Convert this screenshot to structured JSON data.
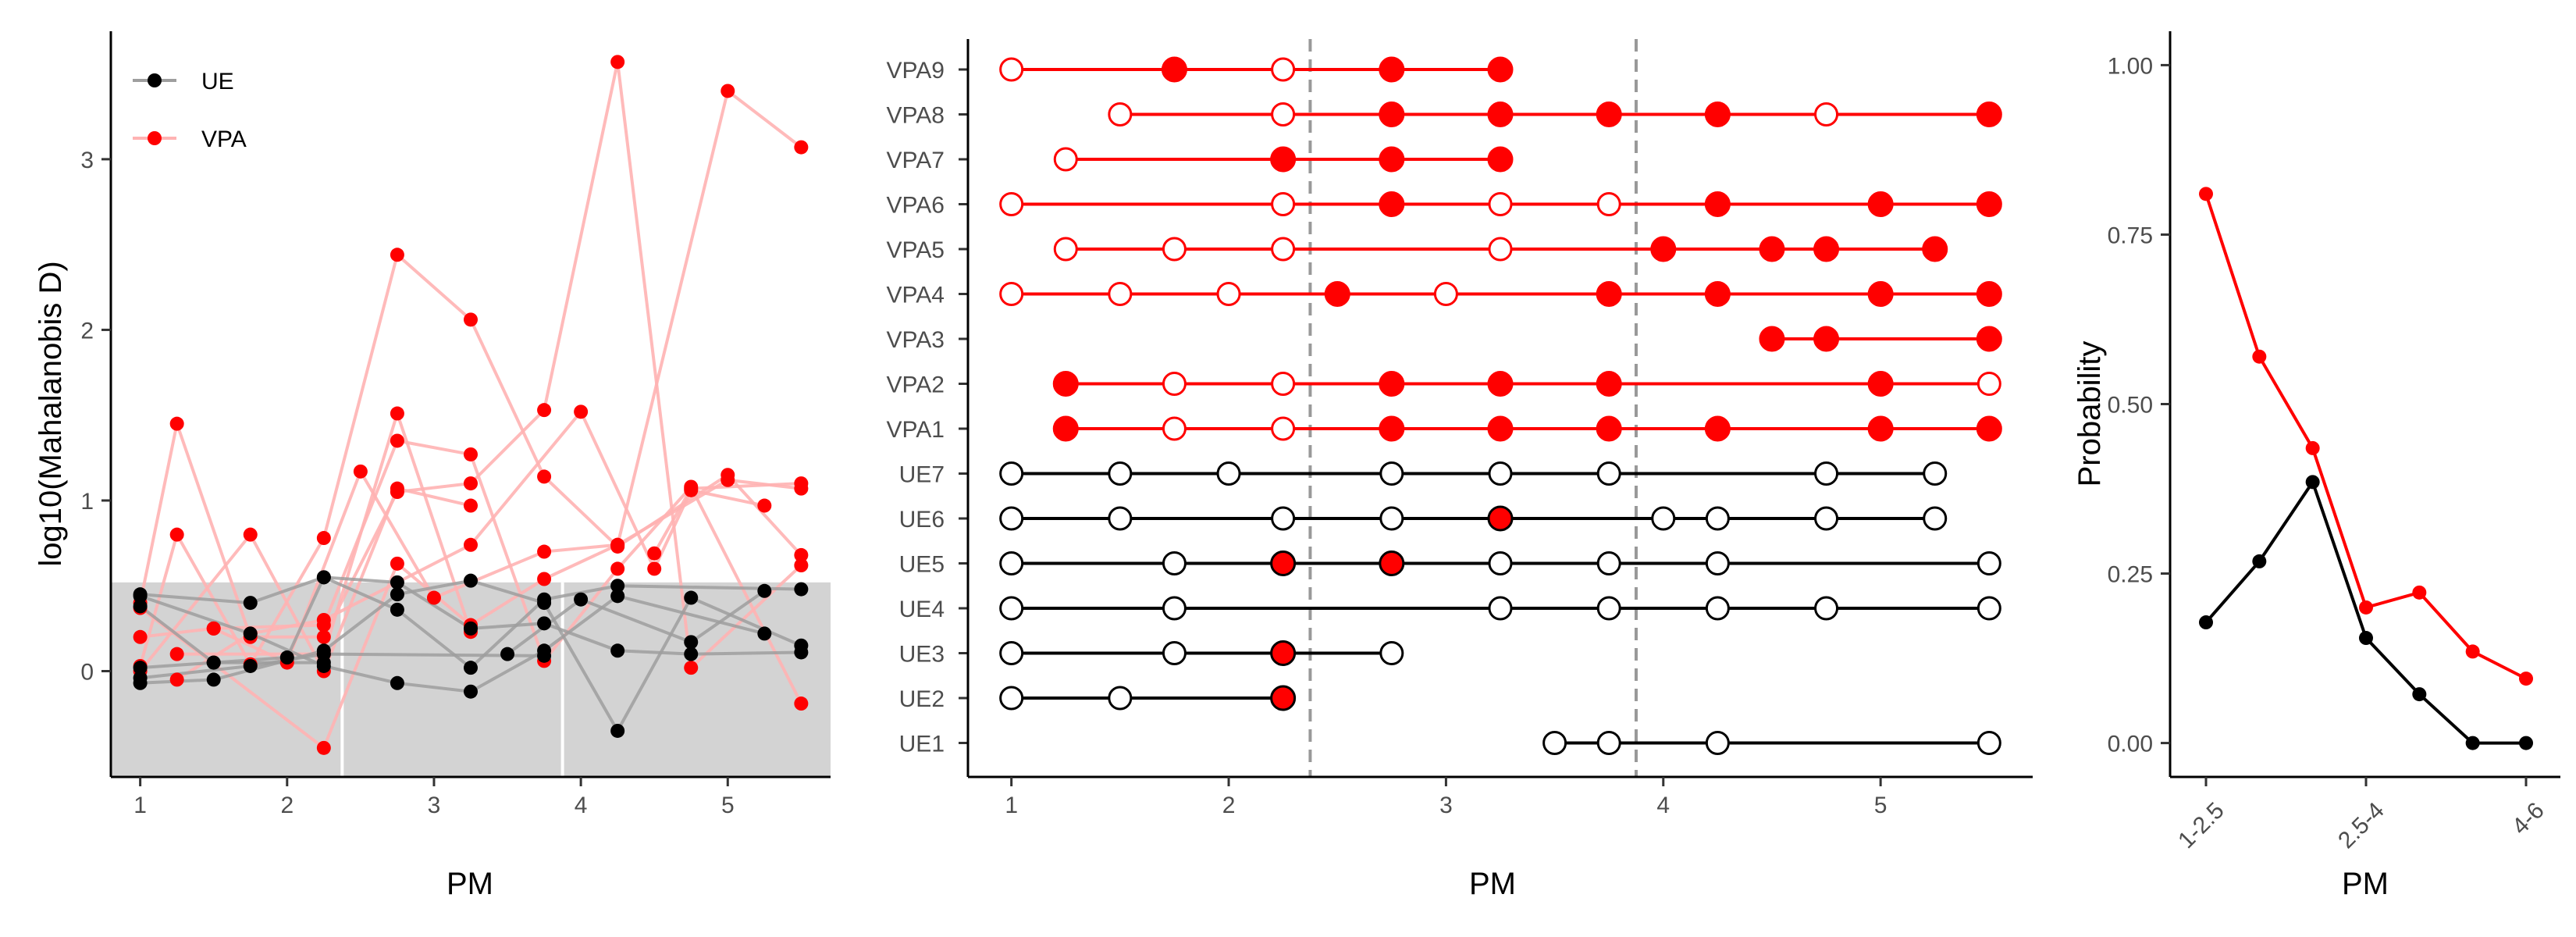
{
  "chart_data": [
    {
      "type": "line",
      "xlabel": "PM",
      "ylabel": "log10(Mahalanobis D)",
      "xlim": [
        0.8,
        5.7
      ],
      "ylim": [
        -0.62,
        3.75
      ],
      "x_ticks": [
        1,
        2,
        3,
        4,
        5
      ],
      "y_ticks": [
        0,
        1,
        2,
        3
      ],
      "shaded_band": {
        "y_from": -0.62,
        "y_to": 0.52
      },
      "band_separators_x": [
        2.375,
        3.875
      ],
      "legend": {
        "position": "top-left",
        "entries": [
          {
            "label": "UE",
            "color": "#000000"
          },
          {
            "label": "VPA",
            "color": "#ff0000"
          }
        ]
      },
      "series": [
        {
          "group": "UE",
          "x": [
            1,
            1.5,
            2,
            2.25,
            2.75,
            3.25,
            3.75,
            4.25,
            4.75,
            5.5
          ],
          "y": [
            0.38,
            0.05,
            0.08,
            0.55,
            0.52,
            0.25,
            0.28,
            0.12,
            0.1,
            0.11
          ]
        },
        {
          "group": "UE",
          "x": [
            1,
            1.75,
            2.25,
            2.75,
            3.25,
            3.75,
            4.25,
            5.25
          ],
          "y": [
            0.44,
            0.22,
            0.03,
            -0.07,
            -0.12,
            0.12,
            0.44,
            0.22
          ]
        },
        {
          "group": "UE",
          "x": [
            1,
            1.75,
            2.25,
            2.75,
            3.25,
            3.75,
            4.25,
            5.5
          ],
          "y": [
            0.45,
            0.4,
            0.55,
            0.36,
            0.02,
            0.42,
            0.5,
            0.48
          ]
        },
        {
          "group": "UE",
          "x": [
            1,
            1.5,
            2.25,
            2.75,
            3.25,
            3.75,
            4.25,
            4.75,
            5.5
          ],
          "y": [
            -0.07,
            -0.05,
            0.12,
            0.45,
            0.53,
            0.4,
            -0.35,
            0.43,
            0.15
          ]
        },
        {
          "group": "UE",
          "x": [
            1,
            1.75,
            2.25,
            3.75
          ],
          "y": [
            -0.04,
            0.03,
            0.1,
            0.09
          ]
        },
        {
          "group": "UE",
          "x": [
            1,
            1.5,
            2.25
          ],
          "y": [
            0.02,
            0.05,
            0.05
          ]
        },
        {
          "group": "UE",
          "x": [
            3.5,
            4,
            4.75,
            5.25
          ],
          "y": [
            0.1,
            0.42,
            0.17,
            0.47
          ]
        },
        {
          "group": "VPA",
          "x": [
            1,
            1.25,
            1.75,
            2.25,
            2.75,
            3.25,
            3.75,
            4.25,
            4.75,
            5.5
          ],
          "y": [
            0.4,
            1.45,
            0.2,
            0.2,
            1.05,
            1.1,
            1.53,
            3.57,
            0.02,
            0.62
          ]
        },
        {
          "group": "VPA",
          "x": [
            1,
            1.25,
            1.75,
            2.25,
            2.75,
            3.25,
            3.75,
            4.25,
            5,
            5.5
          ],
          "y": [
            0.03,
            0.8,
            0.04,
            0.78,
            2.44,
            2.06,
            1.14,
            0.73,
            1.15,
            0.68
          ]
        },
        {
          "group": "VPA",
          "x": [
            4.5,
            4.75,
            5.5
          ],
          "y": [
            0.69,
            1.07,
            1.1
          ]
        },
        {
          "group": "VPA",
          "x": [
            1,
            1.5,
            2,
            2.5,
            3,
            3.75,
            4.25,
            5,
            5.5
          ],
          "y": [
            0.2,
            0.25,
            0.05,
            1.17,
            0.43,
            0.7,
            0.74,
            1.12,
            1.07
          ]
        },
        {
          "group": "VPA",
          "x": [
            1.25,
            1.75,
            2.25,
            3.25,
            4,
            4.5,
            4.75,
            5.25
          ],
          "y": [
            -0.05,
            0.22,
            0.3,
            0.74,
            1.52,
            0.6,
            1.06,
            0.97
          ]
        },
        {
          "group": "VPA",
          "x": [
            1,
            2.25,
            2.75,
            3.25,
            3.75,
            4.25,
            5,
            5.5
          ],
          "y": [
            0.37,
            -0.45,
            0.63,
            0.27,
            0.54,
            0.74,
            3.4,
            3.07
          ]
        },
        {
          "group": "VPA",
          "x": [
            1.25,
            2.25,
            2.75,
            3.25
          ],
          "y": [
            0.1,
            0.1,
            1.51,
            0.23
          ]
        },
        {
          "group": "VPA",
          "x": [
            1.5,
            2.25,
            2.75,
            3.25,
            3.75,
            4.25,
            4.75,
            5.5
          ],
          "y": [
            0.25,
            0.27,
            1.35,
            1.27,
            0.06,
            0.6,
            1.08,
            -0.19
          ]
        },
        {
          "group": "VPA",
          "x": [
            1,
            1.75,
            2.25,
            2.75,
            3.25
          ],
          "y": [
            0.0,
            0.8,
            0.0,
            1.07,
            0.97
          ]
        }
      ]
    },
    {
      "type": "scatter",
      "xlabel": "PM",
      "ylabel": "",
      "xlim": [
        0.8,
        5.7
      ],
      "x_ticks": [
        1,
        2,
        3,
        4,
        5
      ],
      "categories": [
        "VPA9",
        "VPA8",
        "VPA7",
        "VPA6",
        "VPA5",
        "VPA4",
        "VPA3",
        "VPA2",
        "VPA1",
        "UE7",
        "UE6",
        "UE5",
        "UE4",
        "UE3",
        "UE2",
        "UE1"
      ],
      "vlines_x": [
        2.375,
        3.875
      ],
      "rows": [
        {
          "name": "VPA9",
          "group": "VPA",
          "x": [
            1,
            1.75,
            2.25,
            2.75,
            3.25
          ],
          "filled": [
            0,
            1,
            0,
            1,
            1
          ]
        },
        {
          "name": "VPA8",
          "group": "VPA",
          "x": [
            1.5,
            2.25,
            2.75,
            3.25,
            3.75,
            4.25,
            4.75,
            5.5
          ],
          "filled": [
            0,
            0,
            1,
            1,
            1,
            1,
            0,
            1
          ]
        },
        {
          "name": "VPA7",
          "group": "VPA",
          "x": [
            1.25,
            2.25,
            2.75,
            3.25
          ],
          "filled": [
            0,
            1,
            1,
            1
          ]
        },
        {
          "name": "VPA6",
          "group": "VPA",
          "x": [
            1,
            2.25,
            2.75,
            3.25,
            3.75,
            4.25,
            5,
            5.5
          ],
          "filled": [
            0,
            0,
            1,
            0,
            0,
            1,
            1,
            1
          ]
        },
        {
          "name": "VPA5",
          "group": "VPA",
          "x": [
            1.25,
            1.75,
            2.25,
            3.25,
            4,
            4.5,
            4.75,
            5.25
          ],
          "filled": [
            0,
            0,
            0,
            0,
            1,
            1,
            1,
            1
          ]
        },
        {
          "name": "VPA4",
          "group": "VPA",
          "x": [
            1,
            1.5,
            2,
            2.5,
            3,
            3.75,
            4.25,
            5,
            5.5
          ],
          "filled": [
            0,
            0,
            0,
            1,
            0,
            1,
            1,
            1,
            1
          ]
        },
        {
          "name": "VPA3",
          "group": "VPA",
          "x": [
            4.5,
            4.75,
            5.5
          ],
          "filled": [
            1,
            1,
            1
          ]
        },
        {
          "name": "VPA2",
          "group": "VPA",
          "x": [
            1.25,
            1.75,
            2.25,
            2.75,
            3.25,
            3.75,
            5,
            5.5
          ],
          "filled": [
            1,
            0,
            0,
            1,
            1,
            1,
            1,
            0
          ]
        },
        {
          "name": "VPA1",
          "group": "VPA",
          "x": [
            1.25,
            1.75,
            2.25,
            2.75,
            3.25,
            3.75,
            4.25,
            5,
            5.5
          ],
          "filled": [
            1,
            0,
            0,
            1,
            1,
            1,
            1,
            1,
            1
          ]
        },
        {
          "name": "UE7",
          "group": "UE",
          "x": [
            1,
            1.5,
            2,
            2.75,
            3.25,
            3.75,
            4.75,
            5.25
          ],
          "filled": [
            0,
            0,
            0,
            0,
            0,
            0,
            0,
            0
          ]
        },
        {
          "name": "UE6",
          "group": "UE",
          "x": [
            1,
            1.5,
            2.25,
            2.75,
            3.25,
            4,
            4.25,
            4.75,
            5.25
          ],
          "filled": [
            0,
            0,
            0,
            0,
            1,
            0,
            0,
            0,
            0
          ]
        },
        {
          "name": "UE5",
          "group": "UE",
          "x": [
            1,
            1.75,
            2.25,
            2.75,
            3.25,
            3.75,
            4.25,
            5.5
          ],
          "filled": [
            0,
            0,
            1,
            1,
            0,
            0,
            0,
            0
          ]
        },
        {
          "name": "UE4",
          "group": "UE",
          "x": [
            1,
            1.75,
            3.25,
            3.75,
            4.25,
            4.75,
            5.5
          ],
          "filled": [
            0,
            0,
            0,
            0,
            0,
            0,
            0
          ]
        },
        {
          "name": "UE3",
          "group": "UE",
          "x": [
            1,
            1.75,
            2.25,
            2.75
          ],
          "filled": [
            0,
            0,
            1,
            0
          ]
        },
        {
          "name": "UE2",
          "group": "UE",
          "x": [
            1,
            1.5,
            2.25
          ],
          "filled": [
            0,
            0,
            1
          ]
        },
        {
          "name": "UE1",
          "group": "UE",
          "x": [
            3.5,
            3.75,
            4.25,
            5.5
          ],
          "filled": [
            0,
            0,
            0,
            0
          ]
        }
      ]
    },
    {
      "type": "line",
      "xlabel": "PM",
      "ylabel": "Probability",
      "categories": [
        "1-2.5",
        "",
        "",
        "2.5-4",
        "",
        "",
        "4-6"
      ],
      "x_tick_labels": [
        "1-2.5",
        "2.5-4",
        "4-6"
      ],
      "y_ticks": [
        0,
        0.25,
        0.5,
        0.75,
        1.0
      ],
      "y_tick_labels": [
        "0.00",
        "0.25",
        "0.50",
        "0.75",
        "1.00"
      ],
      "ylim": [
        -0.05,
        1.05
      ],
      "series": [
        {
          "group": "VPA",
          "values": [
            0.81,
            0.57,
            0.435,
            0.2,
            0.222,
            0.135,
            0.095
          ]
        },
        {
          "group": "UE",
          "values": [
            0.178,
            0.268,
            0.385,
            0.155,
            0.072,
            0.0,
            0.0
          ]
        }
      ]
    }
  ],
  "colors": {
    "UE": "#000000",
    "VPA": "#ff0000",
    "VPA_light": "#ffb3b3",
    "UE_light": "#9e9e9e",
    "band": "#d3d3d3",
    "vline": "#999999"
  }
}
